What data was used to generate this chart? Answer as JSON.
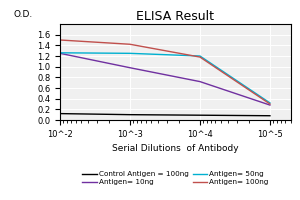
{
  "title": "ELISA Result",
  "ylabel": "O.D.",
  "xlabel": "Serial Dilutions  of Antibody",
  "x_values": [
    0.01,
    0.001,
    0.0001,
    1e-05
  ],
  "lines": [
    {
      "label": "Control Antigen = 100ng",
      "color": "#000000",
      "y_values": [
        0.12,
        0.1,
        0.09,
        0.08
      ]
    },
    {
      "label": "Antigen= 10ng",
      "color": "#7030A0",
      "y_values": [
        1.25,
        0.98,
        0.72,
        0.28
      ]
    },
    {
      "label": "Antigen= 50ng",
      "color": "#00B0D0",
      "y_values": [
        1.26,
        1.25,
        1.2,
        0.32
      ]
    },
    {
      "label": "Antigen= 100ng",
      "color": "#C0504D",
      "y_values": [
        1.5,
        1.42,
        1.18,
        0.3
      ]
    }
  ],
  "ylim": [
    0,
    1.8
  ],
  "yticks": [
    0,
    0.2,
    0.4,
    0.6,
    0.8,
    1.0,
    1.2,
    1.4,
    1.6
  ],
  "xtick_labels": [
    "10^-2",
    "10^-3",
    "10^-4",
    "10^-5"
  ],
  "background_color": "#f0f0f0",
  "title_fontsize": 9,
  "label_fontsize": 6.5,
  "tick_fontsize": 6,
  "legend_fontsize": 5.2
}
